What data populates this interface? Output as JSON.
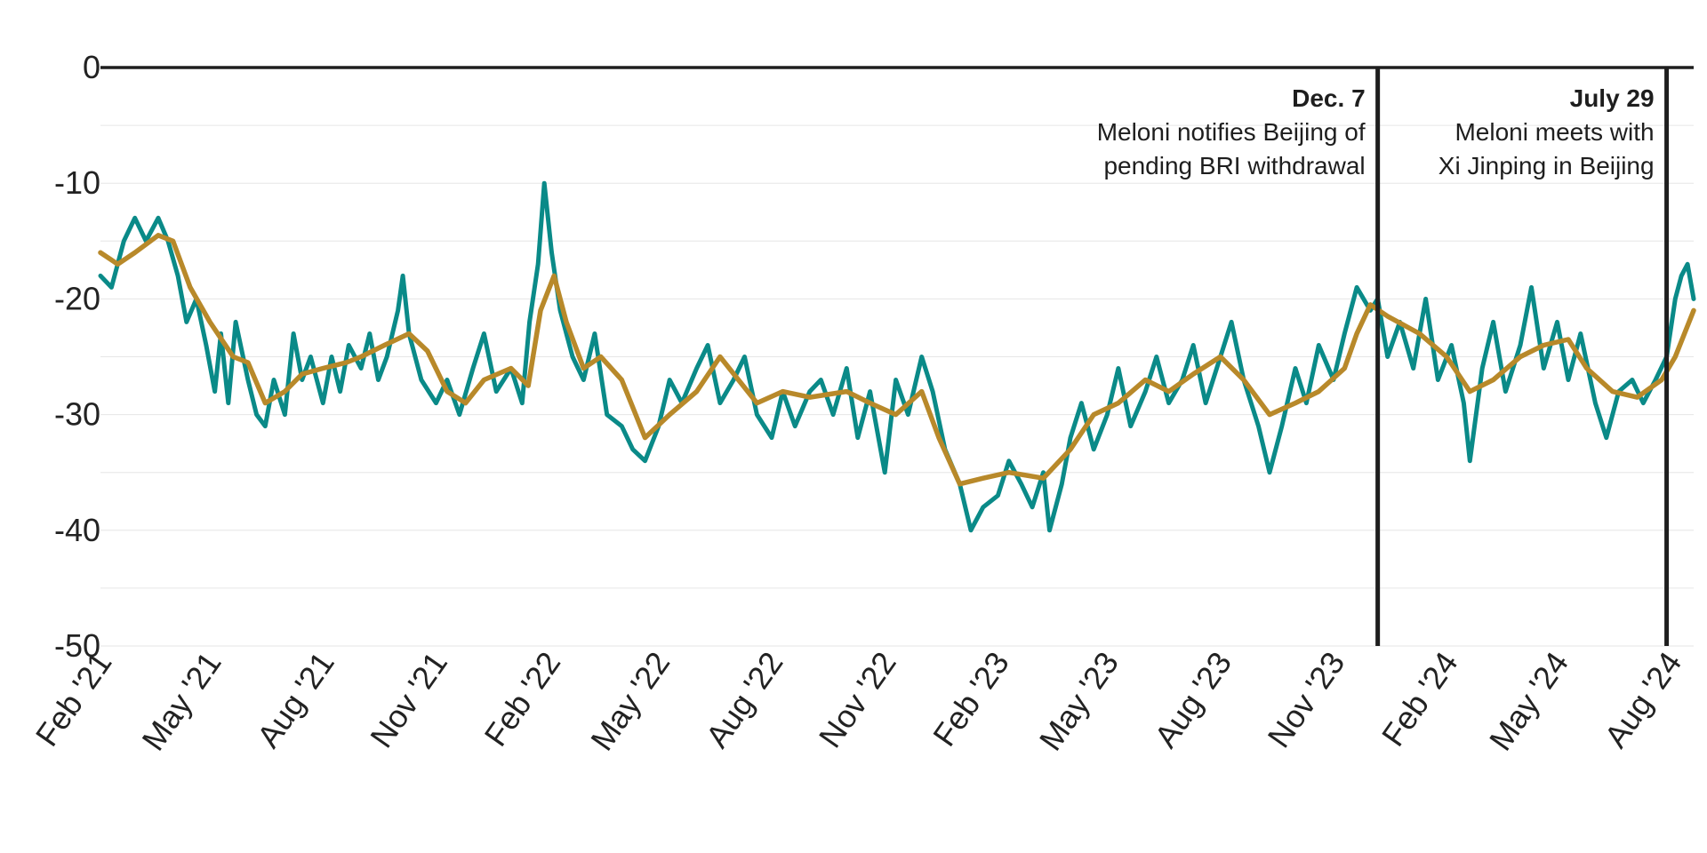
{
  "chart_data": {
    "type": "line",
    "title": "",
    "xlabel": "",
    "ylabel": "",
    "ylim": [
      -50,
      0
    ],
    "xlim": [
      "2021-02-01",
      "2024-08-20"
    ],
    "y_ticks": [
      0,
      -10,
      -20,
      -30,
      -40,
      -50
    ],
    "y_tick_labels": [
      "0",
      "-10",
      "-20",
      "-30",
      "-40",
      "-50"
    ],
    "x_ticks": [
      "2021-02-01",
      "2021-05-01",
      "2021-08-01",
      "2021-11-01",
      "2022-02-01",
      "2022-05-01",
      "2022-08-01",
      "2022-11-01",
      "2023-02-01",
      "2023-05-01",
      "2023-08-01",
      "2023-11-01",
      "2024-02-01",
      "2024-05-01",
      "2024-08-01"
    ],
    "x_tick_labels": [
      "Feb '21",
      "May '21",
      "Aug '21",
      "Nov '21",
      "Feb '22",
      "May '22",
      "Aug '22",
      "Nov '22",
      "Feb '23",
      "May '23",
      "Aug '23",
      "Nov '23",
      "Feb '24",
      "May '24",
      "Aug '24"
    ],
    "grid": true,
    "legend": "none",
    "series": [
      {
        "color": "#0a8a88",
        "points": [
          [
            "2021-02-01",
            -18
          ],
          [
            "2021-02-10",
            -19
          ],
          [
            "2021-02-20",
            -15
          ],
          [
            "2021-03-01",
            -13
          ],
          [
            "2021-03-10",
            -15
          ],
          [
            "2021-03-20",
            -13
          ],
          [
            "2021-03-28",
            -15
          ],
          [
            "2021-04-05",
            -18
          ],
          [
            "2021-04-12",
            -22
          ],
          [
            "2021-04-20",
            -20
          ],
          [
            "2021-04-28",
            -24
          ],
          [
            "2021-05-05",
            -28
          ],
          [
            "2021-05-10",
            -23
          ],
          [
            "2021-05-16",
            -29
          ],
          [
            "2021-05-22",
            -22
          ],
          [
            "2021-06-01",
            -27
          ],
          [
            "2021-06-08",
            -30
          ],
          [
            "2021-06-15",
            -31
          ],
          [
            "2021-06-22",
            -27
          ],
          [
            "2021-07-01",
            -30
          ],
          [
            "2021-07-08",
            -23
          ],
          [
            "2021-07-15",
            -27
          ],
          [
            "2021-07-22",
            -25
          ],
          [
            "2021-08-01",
            -29
          ],
          [
            "2021-08-08",
            -25
          ],
          [
            "2021-08-15",
            -28
          ],
          [
            "2021-08-22",
            -24
          ],
          [
            "2021-09-01",
            -26
          ],
          [
            "2021-09-08",
            -23
          ],
          [
            "2021-09-15",
            -27
          ],
          [
            "2021-09-22",
            -25
          ],
          [
            "2021-10-01",
            -21
          ],
          [
            "2021-10-05",
            -18
          ],
          [
            "2021-10-10",
            -23
          ],
          [
            "2021-10-20",
            -27
          ],
          [
            "2021-11-01",
            -29
          ],
          [
            "2021-11-10",
            -27
          ],
          [
            "2021-11-20",
            -30
          ],
          [
            "2021-12-01",
            -26
          ],
          [
            "2021-12-10",
            -23
          ],
          [
            "2021-12-20",
            -28
          ],
          [
            "2022-01-01",
            -26
          ],
          [
            "2022-01-10",
            -29
          ],
          [
            "2022-01-16",
            -22
          ],
          [
            "2022-01-23",
            -17
          ],
          [
            "2022-01-28",
            -10
          ],
          [
            "2022-02-03",
            -16
          ],
          [
            "2022-02-10",
            -21
          ],
          [
            "2022-02-20",
            -25
          ],
          [
            "2022-03-01",
            -27
          ],
          [
            "2022-03-10",
            -23
          ],
          [
            "2022-03-20",
            -30
          ],
          [
            "2022-04-01",
            -31
          ],
          [
            "2022-04-10",
            -33
          ],
          [
            "2022-04-20",
            -34
          ],
          [
            "2022-05-01",
            -31
          ],
          [
            "2022-05-10",
            -27
          ],
          [
            "2022-05-20",
            -29
          ],
          [
            "2022-06-01",
            -26
          ],
          [
            "2022-06-10",
            -24
          ],
          [
            "2022-06-20",
            -29
          ],
          [
            "2022-07-01",
            -27
          ],
          [
            "2022-07-10",
            -25
          ],
          [
            "2022-07-20",
            -30
          ],
          [
            "2022-08-01",
            -32
          ],
          [
            "2022-08-10",
            -28
          ],
          [
            "2022-08-20",
            -31
          ],
          [
            "2022-09-01",
            -28
          ],
          [
            "2022-09-10",
            -27
          ],
          [
            "2022-09-20",
            -30
          ],
          [
            "2022-10-01",
            -26
          ],
          [
            "2022-10-10",
            -32
          ],
          [
            "2022-10-20",
            -28
          ],
          [
            "2022-11-01",
            -35
          ],
          [
            "2022-11-10",
            -27
          ],
          [
            "2022-11-20",
            -30
          ],
          [
            "2022-12-01",
            -25
          ],
          [
            "2022-12-10",
            -28
          ],
          [
            "2022-12-20",
            -33
          ],
          [
            "2023-01-01",
            -36
          ],
          [
            "2023-01-10",
            -40
          ],
          [
            "2023-01-20",
            -38
          ],
          [
            "2023-02-01",
            -37
          ],
          [
            "2023-02-10",
            -34
          ],
          [
            "2023-02-20",
            -36
          ],
          [
            "2023-03-01",
            -38
          ],
          [
            "2023-03-10",
            -35
          ],
          [
            "2023-03-15",
            -40
          ],
          [
            "2023-03-25",
            -36
          ],
          [
            "2023-04-01",
            -32
          ],
          [
            "2023-04-10",
            -29
          ],
          [
            "2023-04-20",
            -33
          ],
          [
            "2023-05-01",
            -30
          ],
          [
            "2023-05-10",
            -26
          ],
          [
            "2023-05-20",
            -31
          ],
          [
            "2023-06-01",
            -28
          ],
          [
            "2023-06-10",
            -25
          ],
          [
            "2023-06-20",
            -29
          ],
          [
            "2023-07-01",
            -27
          ],
          [
            "2023-07-10",
            -24
          ],
          [
            "2023-07-20",
            -29
          ],
          [
            "2023-08-01",
            -25
          ],
          [
            "2023-08-10",
            -22
          ],
          [
            "2023-08-20",
            -27
          ],
          [
            "2023-09-01",
            -31
          ],
          [
            "2023-09-10",
            -35
          ],
          [
            "2023-09-20",
            -31
          ],
          [
            "2023-10-01",
            -26
          ],
          [
            "2023-10-10",
            -29
          ],
          [
            "2023-10-20",
            -24
          ],
          [
            "2023-11-01",
            -27
          ],
          [
            "2023-11-10",
            -23
          ],
          [
            "2023-11-20",
            -19
          ],
          [
            "2023-12-01",
            -21
          ],
          [
            "2023-12-07",
            -20
          ],
          [
            "2023-12-15",
            -25
          ],
          [
            "2023-12-25",
            -22
          ],
          [
            "2024-01-05",
            -26
          ],
          [
            "2024-01-15",
            -20
          ],
          [
            "2024-01-25",
            -27
          ],
          [
            "2024-02-05",
            -24
          ],
          [
            "2024-02-15",
            -29
          ],
          [
            "2024-02-20",
            -34
          ],
          [
            "2024-03-01",
            -26
          ],
          [
            "2024-03-10",
            -22
          ],
          [
            "2024-03-20",
            -28
          ],
          [
            "2024-04-01",
            -24
          ],
          [
            "2024-04-10",
            -19
          ],
          [
            "2024-04-20",
            -26
          ],
          [
            "2024-05-01",
            -22
          ],
          [
            "2024-05-10",
            -27
          ],
          [
            "2024-05-20",
            -23
          ],
          [
            "2024-06-01",
            -29
          ],
          [
            "2024-06-10",
            -32
          ],
          [
            "2024-06-20",
            -28
          ],
          [
            "2024-07-01",
            -27
          ],
          [
            "2024-07-10",
            -29
          ],
          [
            "2024-07-20",
            -27
          ],
          [
            "2024-07-29",
            -25
          ],
          [
            "2024-08-05",
            -20
          ],
          [
            "2024-08-10",
            -18
          ],
          [
            "2024-08-15",
            -17
          ],
          [
            "2024-08-20",
            -20
          ]
        ]
      },
      {
        "color": "#b8892a",
        "points": [
          [
            "2021-02-01",
            -16
          ],
          [
            "2021-02-15",
            -17
          ],
          [
            "2021-03-01",
            -16
          ],
          [
            "2021-03-20",
            -14.5
          ],
          [
            "2021-04-01",
            -15
          ],
          [
            "2021-04-15",
            -19
          ],
          [
            "2021-05-01",
            -22
          ],
          [
            "2021-05-20",
            -25
          ],
          [
            "2021-06-01",
            -25.5
          ],
          [
            "2021-06-15",
            -29
          ],
          [
            "2021-07-01",
            -28
          ],
          [
            "2021-07-15",
            -26.5
          ],
          [
            "2021-08-01",
            -26
          ],
          [
            "2021-08-20",
            -25.5
          ],
          [
            "2021-09-01",
            -25
          ],
          [
            "2021-09-20",
            -24
          ],
          [
            "2021-10-10",
            -23
          ],
          [
            "2021-10-25",
            -24.5
          ],
          [
            "2021-11-10",
            -28
          ],
          [
            "2021-11-25",
            -29
          ],
          [
            "2021-12-10",
            -27
          ],
          [
            "2022-01-01",
            -26
          ],
          [
            "2022-01-15",
            -27.5
          ],
          [
            "2022-01-25",
            -21
          ],
          [
            "2022-02-05",
            -18
          ],
          [
            "2022-02-15",
            -22
          ],
          [
            "2022-03-01",
            -26
          ],
          [
            "2022-03-15",
            -25
          ],
          [
            "2022-04-01",
            -27
          ],
          [
            "2022-04-20",
            -32
          ],
          [
            "2022-05-10",
            -30
          ],
          [
            "2022-06-01",
            -28
          ],
          [
            "2022-06-20",
            -25
          ],
          [
            "2022-07-05",
            -27
          ],
          [
            "2022-07-20",
            -29
          ],
          [
            "2022-08-10",
            -28
          ],
          [
            "2022-09-01",
            -28.5
          ],
          [
            "2022-10-01",
            -28
          ],
          [
            "2022-10-20",
            -29
          ],
          [
            "2022-11-10",
            -30
          ],
          [
            "2022-12-01",
            -28
          ],
          [
            "2022-12-15",
            -32
          ],
          [
            "2023-01-01",
            -36
          ],
          [
            "2023-01-20",
            -35.5
          ],
          [
            "2023-02-10",
            -35
          ],
          [
            "2023-03-10",
            -35.5
          ],
          [
            "2023-04-01",
            -33
          ],
          [
            "2023-04-20",
            -30
          ],
          [
            "2023-05-10",
            -29
          ],
          [
            "2023-06-01",
            -27
          ],
          [
            "2023-06-20",
            -28
          ],
          [
            "2023-07-10",
            -26.5
          ],
          [
            "2023-08-01",
            -25
          ],
          [
            "2023-08-20",
            -27
          ],
          [
            "2023-09-10",
            -30
          ],
          [
            "2023-10-01",
            -29
          ],
          [
            "2023-10-20",
            -28
          ],
          [
            "2023-11-10",
            -26
          ],
          [
            "2023-11-20",
            -23
          ],
          [
            "2023-12-01",
            -20.5
          ],
          [
            "2023-12-15",
            -21.5
          ],
          [
            "2024-01-10",
            -23
          ],
          [
            "2024-02-01",
            -25
          ],
          [
            "2024-02-20",
            -28
          ],
          [
            "2024-03-10",
            -27
          ],
          [
            "2024-04-01",
            -25
          ],
          [
            "2024-04-20",
            -24
          ],
          [
            "2024-05-10",
            -23.5
          ],
          [
            "2024-05-25",
            -26
          ],
          [
            "2024-06-15",
            -28
          ],
          [
            "2024-07-05",
            -28.5
          ],
          [
            "2024-07-25",
            -27
          ],
          [
            "2024-08-05",
            -25
          ],
          [
            "2024-08-20",
            -21
          ]
        ]
      }
    ],
    "annotations": [
      {
        "x": "2023-12-07",
        "date": "Dec. 7",
        "lines": [
          "Meloni notifies Beijing of",
          "pending BRI withdrawal"
        ]
      },
      {
        "x": "2024-07-29",
        "date": "July 29",
        "lines": [
          "Meloni meets with",
          "Xi Jinping in Beijing"
        ]
      }
    ]
  }
}
